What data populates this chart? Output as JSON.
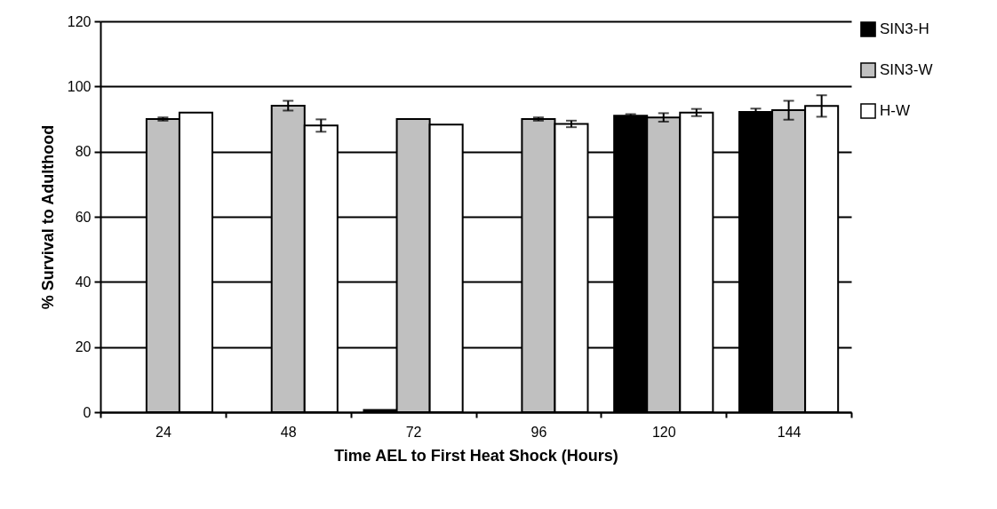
{
  "chart_data": {
    "type": "bar",
    "xlabel": "Time AEL to First Heat Shock (Hours)",
    "ylabel": "% Survival to Adulthood",
    "categories": [
      "24",
      "48",
      "72",
      "96",
      "120",
      "144"
    ],
    "series": [
      {
        "name": "SIN3-H",
        "color": "#000000",
        "values": [
          null,
          null,
          0.7,
          null,
          91,
          92.2
        ],
        "errors": [
          null,
          null,
          null,
          null,
          0.5,
          1
        ]
      },
      {
        "name": "SIN3-W",
        "color": "#c0c0c0",
        "values": [
          90,
          94.1,
          90,
          90,
          90.5,
          92.7
        ],
        "errors": [
          0.5,
          1.5,
          null,
          0.5,
          1.3,
          2.9
        ]
      },
      {
        "name": "H-W",
        "color": "#ffffff",
        "values": [
          92,
          88,
          88.3,
          88.5,
          92,
          94
        ],
        "errors": [
          null,
          1.9,
          null,
          1,
          1.1,
          3.3
        ]
      }
    ],
    "ylim": [
      0,
      120
    ],
    "yticks": [
      0,
      20,
      40,
      60,
      80,
      100,
      120
    ],
    "grid": "y",
    "legend": "right"
  }
}
